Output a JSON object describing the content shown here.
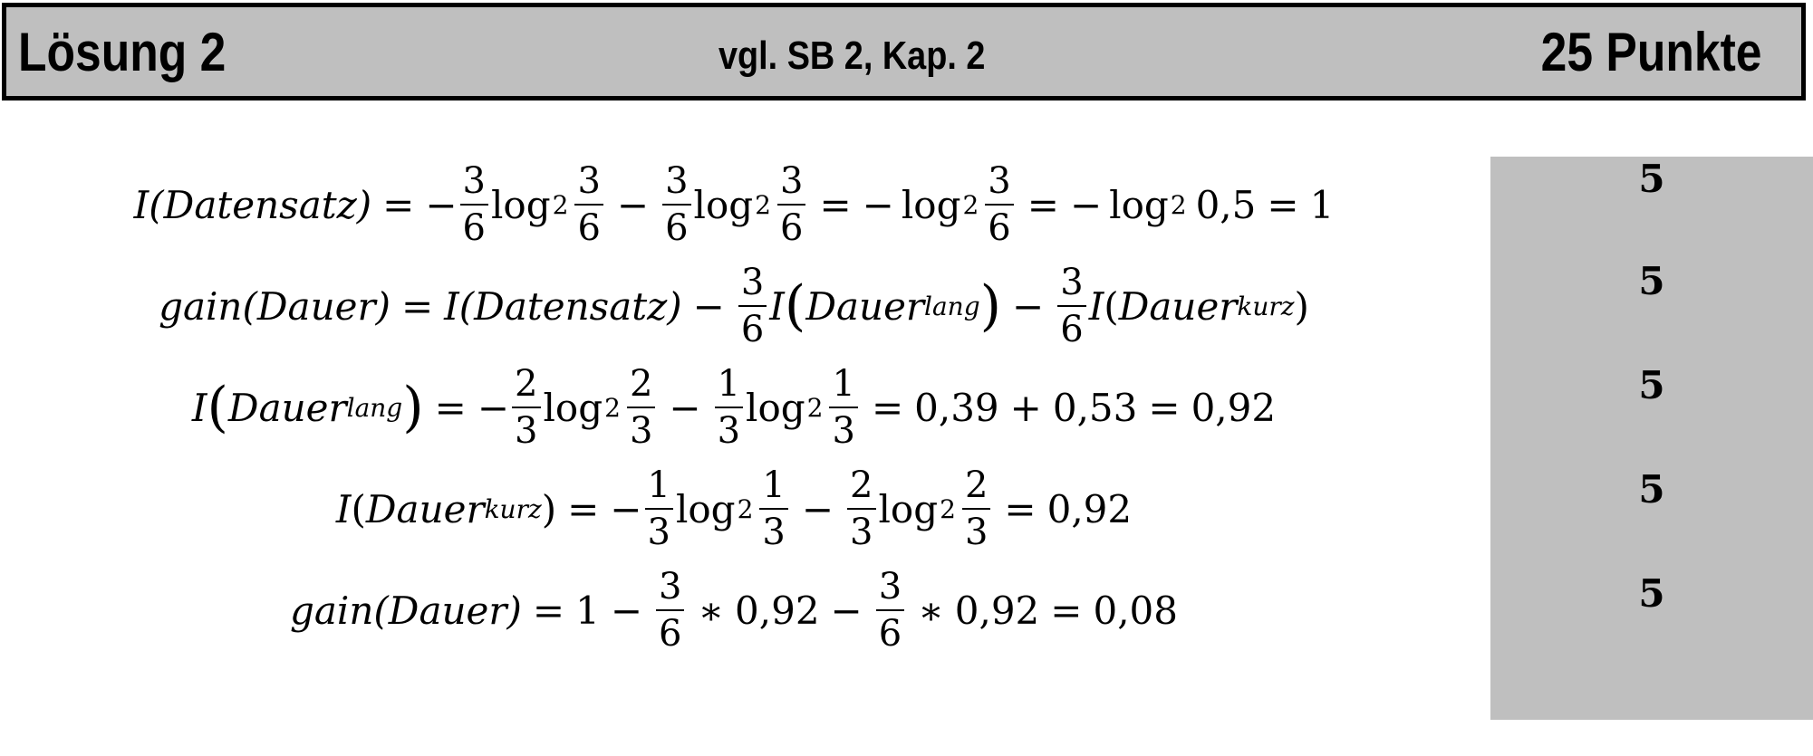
{
  "header": {
    "title": "Lösung 2",
    "reference": "vgl. SB 2, Kap. 2",
    "points": "25 Punkte"
  },
  "formulas": {
    "eq1": {
      "lhs": "I(Datensatz)",
      "eq": "=",
      "minus": "−",
      "f": [
        "3",
        "6"
      ],
      "log": "log",
      "base": "2",
      "rhs_tail_a": "log",
      "value_half": "0,5",
      "result": "1"
    },
    "eq2": {
      "lhs": "gain(Dauer)",
      "eq": "=",
      "term1": "I(Datensatz)",
      "minus": "−",
      "f": [
        "3",
        "6"
      ],
      "I": "I",
      "dauer": "Dauer",
      "lang": "lang",
      "kurz": "kurz",
      "open": "(",
      "close": ")"
    },
    "eq3": {
      "I": "I",
      "dauer": "Dauer",
      "lang": "lang",
      "eq": "=",
      "minus": "−",
      "f2": [
        "2",
        "3"
      ],
      "f1": [
        "1",
        "3"
      ],
      "log": "log",
      "base": "2",
      "a": "0,39",
      "plus": "+",
      "b": "0,53",
      "result": "0,92"
    },
    "eq4": {
      "I": "I",
      "dauer": "Dauer",
      "kurz": "kurz",
      "eq": "=",
      "minus": "−",
      "f1": [
        "1",
        "3"
      ],
      "f2": [
        "2",
        "3"
      ],
      "log": "log",
      "base": "2",
      "result": "0,92"
    },
    "eq5": {
      "lhs": "gain(Dauer)",
      "eq": "=",
      "one": "1",
      "minus": "−",
      "f": [
        "3",
        "6"
      ],
      "times": "∗",
      "val": "0,92",
      "result": "0,08"
    }
  },
  "scores": [
    "5",
    "5",
    "5",
    "5",
    "5"
  ]
}
